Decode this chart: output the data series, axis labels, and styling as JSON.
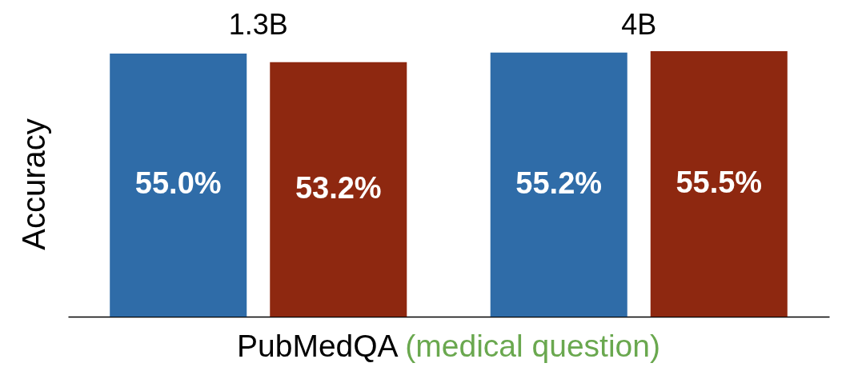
{
  "chart_data": {
    "type": "bar",
    "categories": [
      "1.3B",
      "4B"
    ],
    "xlabel": "PubMedQA (medical question)",
    "ylabel": "Accuracy",
    "tick_labels": "x",
    "series": [
      {
        "color": "#2f6ca8",
        "values": [
          55.0,
          55.2
        ],
        "value_labels": [
          "55.0%",
          "55.2%"
        ]
      },
      {
        "color": "#8e2810",
        "values": [
          53.2,
          55.5
        ],
        "value_labels": [
          "53.2%",
          "55.5%"
        ]
      }
    ]
  }
}
